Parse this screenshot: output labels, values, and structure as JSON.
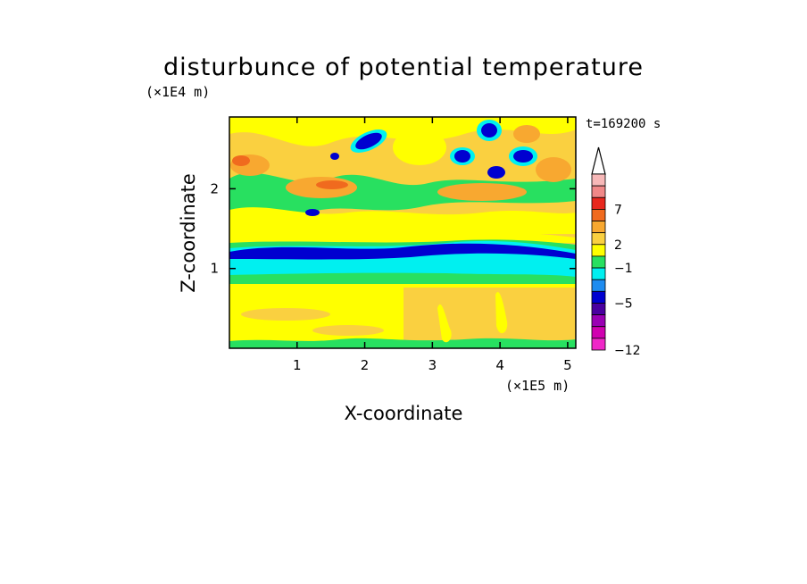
{
  "chart_data": {
    "type": "heatmap",
    "title": "disturbunce of potential temperature",
    "xlabel": "X-coordinate",
    "ylabel": "Z-coordinate",
    "x_unit": "(×1E5 m)",
    "y_unit": "(×1E4 m)",
    "time_label": "t=169200 s",
    "xlim": [
      0,
      5.12
    ],
    "ylim": [
      0,
      2.9
    ],
    "x_ticks": [
      1,
      2,
      3,
      4,
      5
    ],
    "y_ticks": [
      1,
      2
    ],
    "colorbar": {
      "tick_labels": [
        "7",
        "2",
        "−1",
        "−5",
        "−12"
      ],
      "levels": [
        {
          "color": "#f7b8b8"
        },
        {
          "color": "#f08888"
        },
        {
          "color": "#e8281e"
        },
        {
          "color": "#f06a1e"
        },
        {
          "color": "#f8a830"
        },
        {
          "color": "#fad040"
        },
        {
          "color": "#ffff00"
        },
        {
          "color": "#28e060"
        },
        {
          "color": "#00f0f0"
        },
        {
          "color": "#1e8cf0"
        },
        {
          "color": "#0000d0"
        },
        {
          "color": "#4a00a0"
        },
        {
          "color": "#9a00b4"
        },
        {
          "color": "#d000b0"
        },
        {
          "color": "#f028c8"
        }
      ]
    },
    "features": [
      {
        "x": [
          0,
          5.12
        ],
        "z": 1.2,
        "value_level": "−5",
        "description_shown": "dark blue band"
      }
    ]
  }
}
